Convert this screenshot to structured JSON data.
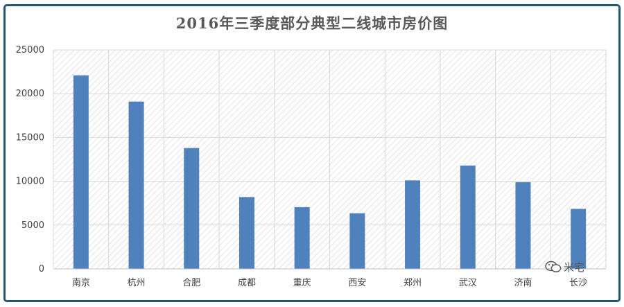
{
  "chart_data": {
    "type": "bar",
    "title": "2016年三季度部分典型二线城市房价图",
    "categories": [
      "南京",
      "杭州",
      "合肥",
      "成都",
      "重庆",
      "西安",
      "郑州",
      "武汉",
      "济南",
      "长沙"
    ],
    "values": [
      22100,
      19100,
      13800,
      8200,
      7050,
      6350,
      10100,
      11800,
      9900,
      6850
    ],
    "ylim": [
      0,
      25000
    ],
    "yticks": [
      0,
      5000,
      10000,
      15000,
      20000,
      25000
    ],
    "xlabel": "",
    "ylabel": "",
    "grid": true,
    "legend": "none",
    "bar_color": "#4f81bd",
    "grid_color": "#d9d9d9",
    "plot_background": "hatched light gray"
  },
  "watermark": {
    "text": "米宅",
    "icon": "wechat-icon"
  },
  "colors": {
    "frame_border": "#1f5a72",
    "title": "#595959"
  }
}
